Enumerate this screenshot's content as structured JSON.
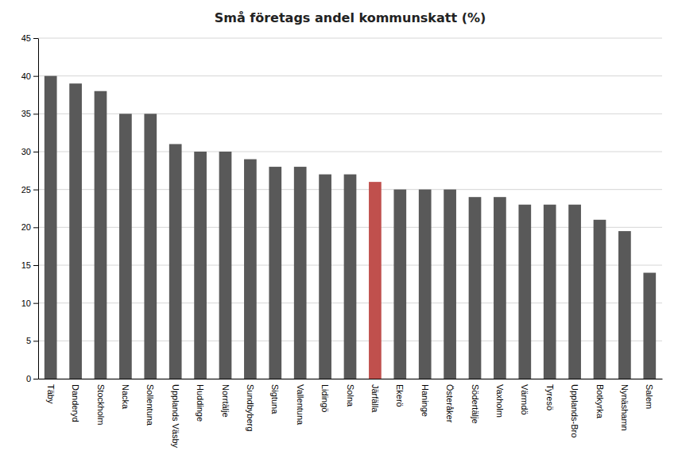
{
  "chart_data": {
    "type": "bar",
    "title": "Små företags andel kommunskatt (%)",
    "categories": [
      "Täby",
      "Danderyd",
      "Stockholm",
      "Nacka",
      "Sollentuna",
      "Upplands Väsby",
      "Huddinge",
      "Norrtälje",
      "Sundbyberg",
      "Sigtuna",
      "Vallentuna",
      "Lidingö",
      "Solna",
      "Järfälla",
      "Ekerö",
      "Haninge",
      "Österåker",
      "Södertälje",
      "Vaxholm",
      "Värmdö",
      "Tyresö",
      "Upplands-Bro",
      "Botkyrka",
      "Nynäshamn",
      "Salem"
    ],
    "values": [
      40.0,
      39.0,
      38.0,
      35.0,
      35.0,
      31.0,
      30.0,
      30.0,
      29.0,
      28.0,
      28.0,
      27.0,
      27.0,
      26.0,
      25.0,
      25.0,
      25.0,
      24.0,
      24.0,
      23.0,
      23.0,
      23.0,
      21.0,
      19.5,
      14.0
    ],
    "colors": [
      "#595959",
      "#595959",
      "#595959",
      "#595959",
      "#595959",
      "#595959",
      "#595959",
      "#595959",
      "#595959",
      "#595959",
      "#595959",
      "#595959",
      "#595959",
      "#C0504D",
      "#595959",
      "#595959",
      "#595959",
      "#595959",
      "#595959",
      "#595959",
      "#595959",
      "#595959",
      "#595959",
      "#595959",
      "#595959"
    ],
    "ylim": [
      0,
      45
    ],
    "yticks": [
      0,
      5,
      10,
      15,
      20,
      25,
      30,
      35,
      40,
      45
    ],
    "grid": true
  }
}
